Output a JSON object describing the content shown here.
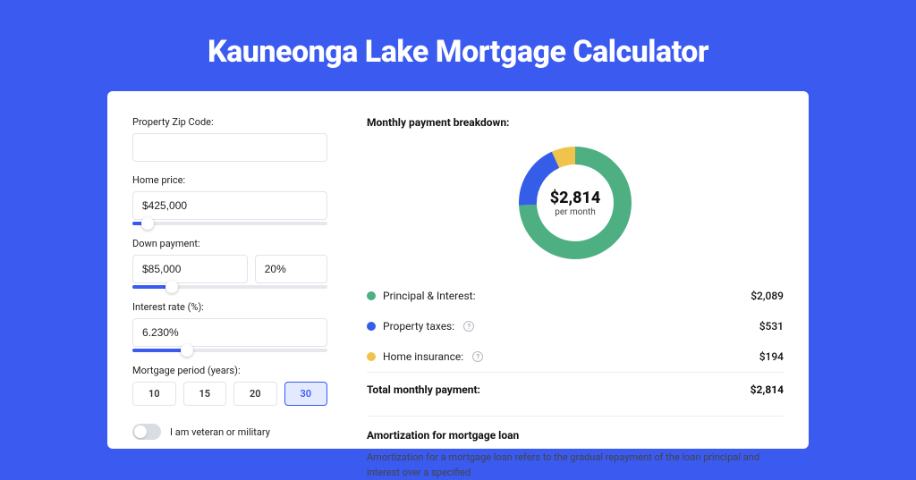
{
  "title": "Kauneonga Lake Mortgage Calculator",
  "colors": {
    "brand": "#3a5af0",
    "green": "#4daf82",
    "blue": "#355de8",
    "yellow": "#f0c44c",
    "bg": "#ffffff"
  },
  "form": {
    "zip": {
      "label": "Property Zip Code:",
      "value": ""
    },
    "home_price": {
      "label": "Home price:",
      "value": "$425,000",
      "slider_pct": 8
    },
    "down_payment": {
      "label": "Down payment:",
      "value": "$85,000",
      "pct": "20%",
      "slider_pct": 20
    },
    "interest": {
      "label": "Interest rate (%):",
      "value": "6.230%",
      "slider_pct": 28
    },
    "period": {
      "label": "Mortgage period (years):",
      "options": [
        "10",
        "15",
        "20",
        "30"
      ],
      "selected": "30"
    },
    "veteran": {
      "label": "I am veteran or military",
      "checked": false
    }
  },
  "breakdown": {
    "title": "Monthly payment breakdown:",
    "center_value": "$2,814",
    "center_sub": "per month",
    "chart": {
      "type": "donut",
      "slices": [
        {
          "label": "Principal & Interest",
          "value": 2089,
          "display": "$2,089",
          "color": "#4daf82"
        },
        {
          "label": "Property taxes",
          "value": 531,
          "display": "$531",
          "color": "#355de8"
        },
        {
          "label": "Home insurance",
          "value": 194,
          "display": "$194",
          "color": "#f0c44c"
        }
      ],
      "stroke_width": 20,
      "radius": 53,
      "size": 130,
      "background_color": "#ffffff"
    },
    "items": [
      {
        "label": "Principal & Interest:",
        "value": "$2,089",
        "color": "#4daf82",
        "info": false
      },
      {
        "label": "Property taxes:",
        "value": "$531",
        "color": "#355de8",
        "info": true
      },
      {
        "label": "Home insurance:",
        "value": "$194",
        "color": "#f0c44c",
        "info": true
      }
    ],
    "total": {
      "label": "Total monthly payment:",
      "value": "$2,814"
    }
  },
  "amortization": {
    "title": "Amortization for mortgage loan",
    "text": "Amortization for a mortgage loan refers to the gradual repayment of the loan principal and interest over a specified"
  }
}
